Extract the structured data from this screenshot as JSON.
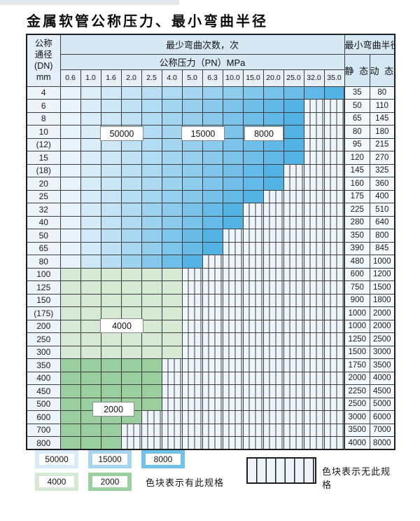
{
  "title": "金属软管公称压力、最小弯曲半径",
  "table": {
    "dn_header_lines": [
      "公称",
      "通径",
      "(DN)",
      "mm"
    ],
    "bend_times_header": "最少弯曲次数，次",
    "pressure_header": "公称压力（PN）MPa",
    "radius_header": "最小弯曲半径",
    "static_header": "静 态",
    "dynamic_header": "动 态",
    "pressures": [
      "0.6",
      "1.0",
      "1.6",
      "2.0",
      "2.5",
      "4.0",
      "5.0",
      "6.3",
      "10.0",
      "15.0",
      "20.0",
      "25.0",
      "32.0",
      "35.0"
    ],
    "rows": [
      {
        "dn": "4",
        "spec_through": "35.0",
        "band": "blue",
        "static": "35",
        "dynamic": "80"
      },
      {
        "dn": "6",
        "spec_through": "25.0",
        "band": "blue",
        "static": "50",
        "dynamic": "110"
      },
      {
        "dn": "8",
        "spec_through": "25.0",
        "band": "blue",
        "static": "65",
        "dynamic": "145"
      },
      {
        "dn": "10",
        "spec_through": "25.0",
        "band": "blue",
        "static": "80",
        "dynamic": "180"
      },
      {
        "dn": "(12)",
        "spec_through": "25.0",
        "band": "blue",
        "static": "95",
        "dynamic": "215"
      },
      {
        "dn": "15",
        "spec_through": "25.0",
        "band": "blue",
        "static": "120",
        "dynamic": "270"
      },
      {
        "dn": "(18)",
        "spec_through": "20.0",
        "band": "blue",
        "static": "145",
        "dynamic": "325"
      },
      {
        "dn": "20",
        "spec_through": "20.0",
        "band": "blue",
        "static": "160",
        "dynamic": "360"
      },
      {
        "dn": "25",
        "spec_through": "15.0",
        "band": "blue",
        "static": "175",
        "dynamic": "400"
      },
      {
        "dn": "32",
        "spec_through": "10.0",
        "band": "blue",
        "static": "225",
        "dynamic": "510"
      },
      {
        "dn": "40",
        "spec_through": "10.0",
        "band": "blue",
        "static": "280",
        "dynamic": "640"
      },
      {
        "dn": "50",
        "spec_through": "6.3",
        "band": "blue",
        "static": "350",
        "dynamic": "800"
      },
      {
        "dn": "65",
        "spec_through": "6.3",
        "band": "blue",
        "static": "390",
        "dynamic": "845"
      },
      {
        "dn": "80",
        "spec_through": "5.0",
        "band": "blue",
        "static": "480",
        "dynamic": "1000"
      },
      {
        "dn": "100",
        "spec_through": "4.0",
        "band": "g1",
        "static": "600",
        "dynamic": "1200"
      },
      {
        "dn": "125",
        "spec_through": "4.0",
        "band": "g1",
        "static": "750",
        "dynamic": "1500"
      },
      {
        "dn": "150",
        "spec_through": "4.0",
        "band": "g1",
        "static": "900",
        "dynamic": "1800"
      },
      {
        "dn": "(175)",
        "spec_through": "4.0",
        "band": "g1",
        "static": "1000",
        "dynamic": "2000"
      },
      {
        "dn": "200",
        "spec_through": "4.0",
        "band": "g1",
        "static": "1000",
        "dynamic": "2000"
      },
      {
        "dn": "250",
        "spec_through": "4.0",
        "band": "g1",
        "static": "1250",
        "dynamic": "2500"
      },
      {
        "dn": "300",
        "spec_through": "4.0",
        "band": "g1",
        "static": "1500",
        "dynamic": "3000"
      },
      {
        "dn": "350",
        "spec_through": "2.5",
        "band": "g2",
        "static": "1750",
        "dynamic": "3500"
      },
      {
        "dn": "400",
        "spec_through": "2.5",
        "band": "g2",
        "static": "2000",
        "dynamic": "4000"
      },
      {
        "dn": "450",
        "spec_through": "2.5",
        "band": "g2",
        "static": "2250",
        "dynamic": "4500"
      },
      {
        "dn": "500",
        "spec_through": "2.5",
        "band": "g2",
        "static": "2500",
        "dynamic": "5000"
      },
      {
        "dn": "600",
        "spec_through": "2.0",
        "band": "g2",
        "static": "3000",
        "dynamic": "6000"
      },
      {
        "dn": "700",
        "spec_through": "1.6",
        "band": "g2",
        "static": "3500",
        "dynamic": "7000"
      },
      {
        "dn": "800",
        "spec_through": "1.6",
        "band": "g2",
        "static": "4000",
        "dynamic": "8000"
      }
    ]
  },
  "band_labels": {
    "b50000": "50000",
    "b15000": "15000",
    "b8000": "8000",
    "b4000": "4000",
    "b2000": "2000"
  },
  "legend": {
    "items": [
      {
        "value": "50000",
        "color": "#d7ebf8",
        "group": "blue"
      },
      {
        "value": "15000",
        "color": "#a5d5ef",
        "group": "blue"
      },
      {
        "value": "8000",
        "color": "#6fc2ea",
        "group": "blue"
      },
      {
        "value": "4000",
        "color": "#d6e9d4",
        "group": "green"
      },
      {
        "value": "2000",
        "color": "#9ccf9f",
        "group": "green"
      }
    ],
    "has_spec_text": "色块表示有此规格",
    "no_spec_text": "色块表示无此规格"
  },
  "colors": {
    "blue_start": "#e8f3fb",
    "blue_end": "#54b3e5",
    "green_4000": "#d6e9d4",
    "green_2000": "#9ccf9f",
    "hatch_bg": "#eff5fa",
    "grid": "#3d3d3d"
  }
}
